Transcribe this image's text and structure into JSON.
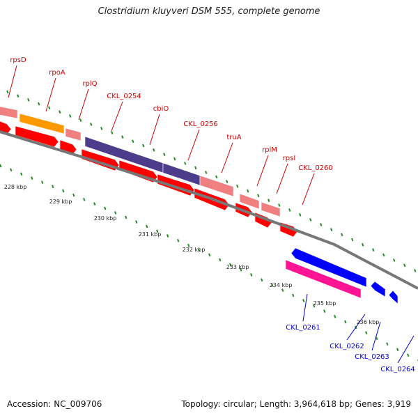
{
  "title": "Clostridium kluyveri DSM 555, complete genome",
  "footer": {
    "accession": "Accession: NC_009706",
    "summary": "Topology: circular; Length: 3,964,618 bp; Genes: 3,919"
  },
  "colors": {
    "forward_cds": "#ff0000",
    "reverse_cds": "#0000ff",
    "rrna_pink": "#f08080",
    "orange": "#ff9900",
    "purple": "#4b3c8c",
    "magenta": "#ff1493",
    "backbone": "#777777",
    "tick": "#228b22",
    "label_top": "#cc0000",
    "label_bottom": "#0000cc"
  },
  "gene_labels_forward": [
    "rpsD",
    "rpoA",
    "rplQ",
    "CKL_0254",
    "cbiO",
    "CKL_0256",
    "truA",
    "rplM",
    "rpsI",
    "CKL_0260"
  ],
  "gene_labels_reverse": [
    "CKL_0261",
    "CKL_0262",
    "CKL_0263",
    "CKL_0264"
  ],
  "kbp_labels": [
    "228 kbp",
    "229 kbp",
    "230 kbp",
    "231 kbp",
    "232 kbp",
    "233 kbp",
    "234 kbp",
    "235 kbp",
    "236 kbp"
  ]
}
